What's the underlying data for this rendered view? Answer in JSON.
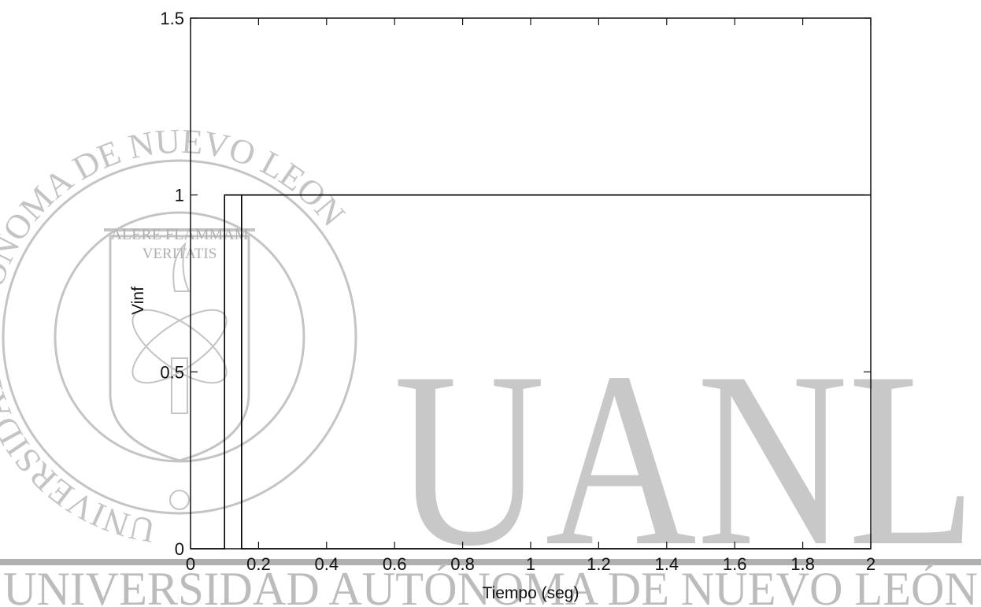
{
  "watermark": {
    "big_letters": "UANL",
    "footer": "UNIVERSIDAD AUTÓNOMA DE NUEVO LEÓN",
    "seal_motto_1": "ALERE FLAMMAM",
    "seal_motto_2": "VERITATIS",
    "seal_ring": "UNIVERSIDAD AUTONOMA DE NUEVO LEON",
    "color": "#b8b8b8"
  },
  "chart_data": {
    "type": "line",
    "xlabel": "Tiempo (seg)",
    "ylabel": "Vinf",
    "xlim": [
      0,
      2
    ],
    "ylim": [
      0,
      1.5
    ],
    "xticks": [
      0,
      0.2,
      0.4,
      0.6,
      0.8,
      1,
      1.2,
      1.4,
      1.6,
      1.8,
      2
    ],
    "xtick_labels": [
      "0",
      "0.2",
      "0.4",
      "0.6",
      "0.8",
      "1",
      "1.2",
      "1.4",
      "1.6",
      "1.8",
      "2"
    ],
    "yticks": [
      0,
      0.5,
      1,
      1.5
    ],
    "ytick_labels": [
      "0",
      "0.5",
      "1",
      "1.5"
    ],
    "grid": false,
    "box": true,
    "line_color": "#000000",
    "series": [
      {
        "x": [
          0,
          0.1,
          0.1,
          0.15,
          0.15,
          2
        ],
        "y": [
          0,
          0,
          1,
          1,
          0,
          0
        ]
      },
      {
        "x": [
          0.15,
          0.15,
          2
        ],
        "y": [
          0,
          1,
          1
        ]
      }
    ]
  }
}
